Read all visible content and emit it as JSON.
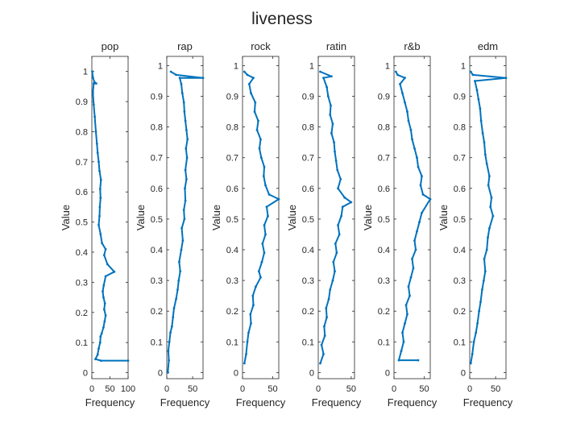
{
  "figure": {
    "title": "liveness",
    "line_color": "#0072BD",
    "axis_color": "#262626"
  },
  "chart_data": [
    {
      "type": "line",
      "title": "pop",
      "xlabel": "Frequency",
      "ylabel": "Value",
      "xlim": [
        0,
        100
      ],
      "ylim": [
        -0.02,
        1.05
      ],
      "xticks": [
        0,
        50,
        100
      ],
      "yticks": [
        0,
        0.1,
        0.2,
        0.3,
        0.4,
        0.5,
        0.6,
        0.7,
        0.8,
        0.9,
        1
      ],
      "grid": false,
      "series": [
        {
          "points": [
            [
              100,
              0.04
            ],
            [
              25,
              0.04
            ],
            [
              10,
              0.045
            ],
            [
              16,
              0.06
            ],
            [
              19,
              0.08
            ],
            [
              23,
              0.1
            ],
            [
              24,
              0.12
            ],
            [
              27,
              0.13
            ],
            [
              32,
              0.15
            ],
            [
              35,
              0.17
            ],
            [
              38,
              0.19
            ],
            [
              34,
              0.21
            ],
            [
              36,
              0.23
            ],
            [
              32,
              0.25
            ],
            [
              30,
              0.27
            ],
            [
              33,
              0.29
            ],
            [
              38,
              0.32
            ],
            [
              62,
              0.335
            ],
            [
              43,
              0.36
            ],
            [
              34,
              0.39
            ],
            [
              38,
              0.41
            ],
            [
              28,
              0.43
            ],
            [
              24,
              0.46
            ],
            [
              19,
              0.49
            ],
            [
              21,
              0.52
            ],
            [
              22,
              0.55
            ],
            [
              24,
              0.58
            ],
            [
              23,
              0.61
            ],
            [
              25,
              0.64
            ],
            [
              21,
              0.67
            ],
            [
              19,
              0.7
            ],
            [
              16,
              0.73
            ],
            [
              14,
              0.76
            ],
            [
              11,
              0.8
            ],
            [
              8,
              0.85
            ],
            [
              5,
              0.89
            ],
            [
              3,
              0.93
            ],
            [
              5,
              0.96
            ],
            [
              12,
              0.96
            ],
            [
              7,
              0.965
            ],
            [
              3,
              0.98
            ],
            [
              1,
              1.0
            ]
          ]
        }
      ]
    },
    {
      "type": "line",
      "title": "rap",
      "xlabel": "Frequency",
      "ylabel": "Value",
      "xlim": [
        0,
        70
      ],
      "ylim": [
        -0.02,
        1.03
      ],
      "xticks": [
        0,
        50
      ],
      "yticks": [
        0,
        0.1,
        0.2,
        0.3,
        0.4,
        0.5,
        0.6,
        0.7,
        0.8,
        0.9,
        1
      ],
      "grid": false,
      "series": [
        {
          "points": [
            [
              2,
              0.0
            ],
            [
              4,
              0.04
            ],
            [
              3,
              0.07
            ],
            [
              5,
              0.1
            ],
            [
              7,
              0.13
            ],
            [
              10,
              0.15
            ],
            [
              12,
              0.18
            ],
            [
              14,
              0.21
            ],
            [
              18,
              0.24
            ],
            [
              21,
              0.27
            ],
            [
              23,
              0.3
            ],
            [
              26,
              0.33
            ],
            [
              24,
              0.36
            ],
            [
              28,
              0.4
            ],
            [
              31,
              0.43
            ],
            [
              29,
              0.47
            ],
            [
              34,
              0.5
            ],
            [
              33,
              0.53
            ],
            [
              36,
              0.56
            ],
            [
              35,
              0.6
            ],
            [
              38,
              0.63
            ],
            [
              36,
              0.66
            ],
            [
              39,
              0.7
            ],
            [
              37,
              0.73
            ],
            [
              40,
              0.76
            ],
            [
              38,
              0.79
            ],
            [
              36,
              0.82
            ],
            [
              34,
              0.85
            ],
            [
              33,
              0.88
            ],
            [
              30,
              0.91
            ],
            [
              28,
              0.94
            ],
            [
              25,
              0.96
            ],
            [
              70,
              0.96
            ],
            [
              18,
              0.97
            ],
            [
              8,
              0.98
            ]
          ]
        }
      ]
    },
    {
      "type": "line",
      "title": "rock",
      "xlabel": "Frequency",
      "ylabel": "Value",
      "xlim": [
        0,
        60
      ],
      "ylim": [
        -0.02,
        1.03
      ],
      "xticks": [
        0,
        50
      ],
      "yticks": [
        0,
        0.1,
        0.2,
        0.3,
        0.4,
        0.5,
        0.6,
        0.7,
        0.8,
        0.9,
        1
      ],
      "grid": false,
      "series": [
        {
          "points": [
            [
              3,
              0.03
            ],
            [
              6,
              0.06
            ],
            [
              8,
              0.1
            ],
            [
              10,
              0.13
            ],
            [
              14,
              0.16
            ],
            [
              13,
              0.19
            ],
            [
              18,
              0.22
            ],
            [
              17,
              0.25
            ],
            [
              22,
              0.28
            ],
            [
              30,
              0.31
            ],
            [
              27,
              0.33
            ],
            [
              32,
              0.36
            ],
            [
              36,
              0.39
            ],
            [
              33,
              0.42
            ],
            [
              38,
              0.45
            ],
            [
              36,
              0.48
            ],
            [
              42,
              0.51
            ],
            [
              40,
              0.54
            ],
            [
              60,
              0.565
            ],
            [
              44,
              0.58
            ],
            [
              38,
              0.61
            ],
            [
              35,
              0.64
            ],
            [
              36,
              0.67
            ],
            [
              31,
              0.7
            ],
            [
              28,
              0.73
            ],
            [
              30,
              0.76
            ],
            [
              24,
              0.79
            ],
            [
              26,
              0.82
            ],
            [
              20,
              0.85
            ],
            [
              21,
              0.88
            ],
            [
              14,
              0.91
            ],
            [
              11,
              0.94
            ],
            [
              18,
              0.96
            ],
            [
              8,
              0.97
            ],
            [
              3,
              0.98
            ]
          ]
        }
      ]
    },
    {
      "type": "line",
      "title": "ratin",
      "xlabel": "Frequency",
      "ylabel": "Value",
      "xlim": [
        0,
        55
      ],
      "ylim": [
        -0.02,
        1.03
      ],
      "xticks": [
        0,
        50
      ],
      "yticks": [
        0,
        0.1,
        0.2,
        0.3,
        0.4,
        0.5,
        0.6,
        0.7,
        0.8,
        0.9,
        1
      ],
      "grid": false,
      "series": [
        {
          "points": [
            [
              3,
              0.03
            ],
            [
              8,
              0.06
            ],
            [
              5,
              0.09
            ],
            [
              10,
              0.12
            ],
            [
              9,
              0.15
            ],
            [
              13,
              0.18
            ],
            [
              12,
              0.21
            ],
            [
              16,
              0.24
            ],
            [
              18,
              0.27
            ],
            [
              22,
              0.3
            ],
            [
              25,
              0.33
            ],
            [
              23,
              0.36
            ],
            [
              28,
              0.39
            ],
            [
              26,
              0.42
            ],
            [
              32,
              0.45
            ],
            [
              30,
              0.48
            ],
            [
              35,
              0.51
            ],
            [
              37,
              0.54
            ],
            [
              50,
              0.555
            ],
            [
              40,
              0.57
            ],
            [
              30,
              0.6
            ],
            [
              34,
              0.63
            ],
            [
              29,
              0.66
            ],
            [
              27,
              0.69
            ],
            [
              25,
              0.72
            ],
            [
              24,
              0.75
            ],
            [
              20,
              0.78
            ],
            [
              22,
              0.81
            ],
            [
              18,
              0.84
            ],
            [
              19,
              0.87
            ],
            [
              15,
              0.9
            ],
            [
              13,
              0.93
            ],
            [
              8,
              0.96
            ],
            [
              20,
              0.965
            ],
            [
              3,
              0.98
            ]
          ]
        }
      ]
    },
    {
      "type": "line",
      "title": "r&b",
      "xlabel": "Frequency",
      "ylabel": "Value",
      "xlim": [
        0,
        60
      ],
      "ylim": [
        -0.02,
        1.03
      ],
      "xticks": [
        0,
        50
      ],
      "yticks": [
        0,
        0.1,
        0.2,
        0.3,
        0.4,
        0.5,
        0.6,
        0.7,
        0.8,
        0.9,
        1
      ],
      "grid": false,
      "series": [
        {
          "points": [
            [
              40,
              0.04
            ],
            [
              8,
              0.04
            ],
            [
              12,
              0.07
            ],
            [
              16,
              0.1
            ],
            [
              14,
              0.13
            ],
            [
              18,
              0.16
            ],
            [
              22,
              0.19
            ],
            [
              20,
              0.22
            ],
            [
              26,
              0.25
            ],
            [
              24,
              0.28
            ],
            [
              28,
              0.31
            ],
            [
              32,
              0.34
            ],
            [
              30,
              0.37
            ],
            [
              36,
              0.4
            ],
            [
              34,
              0.43
            ],
            [
              38,
              0.46
            ],
            [
              42,
              0.49
            ],
            [
              46,
              0.52
            ],
            [
              60,
              0.565
            ],
            [
              48,
              0.58
            ],
            [
              44,
              0.61
            ],
            [
              46,
              0.64
            ],
            [
              40,
              0.67
            ],
            [
              38,
              0.7
            ],
            [
              34,
              0.73
            ],
            [
              30,
              0.76
            ],
            [
              28,
              0.79
            ],
            [
              24,
              0.82
            ],
            [
              22,
              0.85
            ],
            [
              18,
              0.88
            ],
            [
              14,
              0.91
            ],
            [
              10,
              0.94
            ],
            [
              18,
              0.96
            ],
            [
              6,
              0.97
            ],
            [
              3,
              0.98
            ]
          ]
        }
      ]
    },
    {
      "type": "line",
      "title": "edm",
      "xlabel": "Frequency",
      "ylabel": "Value",
      "xlim": [
        0,
        70
      ],
      "ylim": [
        -0.02,
        1.03
      ],
      "xticks": [
        0,
        50
      ],
      "yticks": [
        0,
        0.1,
        0.2,
        0.3,
        0.4,
        0.5,
        0.6,
        0.7,
        0.8,
        0.9,
        1
      ],
      "grid": false,
      "series": [
        {
          "points": [
            [
              2,
              0.03
            ],
            [
              5,
              0.06
            ],
            [
              8,
              0.1
            ],
            [
              12,
              0.13
            ],
            [
              15,
              0.16
            ],
            [
              18,
              0.2
            ],
            [
              21,
              0.23
            ],
            [
              24,
              0.27
            ],
            [
              27,
              0.3
            ],
            [
              30,
              0.33
            ],
            [
              28,
              0.37
            ],
            [
              33,
              0.4
            ],
            [
              35,
              0.44
            ],
            [
              38,
              0.47
            ],
            [
              45,
              0.51
            ],
            [
              40,
              0.54
            ],
            [
              42,
              0.57
            ],
            [
              36,
              0.61
            ],
            [
              38,
              0.64
            ],
            [
              33,
              0.68
            ],
            [
              30,
              0.71
            ],
            [
              28,
              0.75
            ],
            [
              25,
              0.78
            ],
            [
              22,
              0.82
            ],
            [
              20,
              0.86
            ],
            [
              17,
              0.89
            ],
            [
              14,
              0.92
            ],
            [
              10,
              0.95
            ],
            [
              70,
              0.96
            ],
            [
              6,
              0.97
            ],
            [
              2,
              0.98
            ]
          ]
        }
      ]
    }
  ]
}
